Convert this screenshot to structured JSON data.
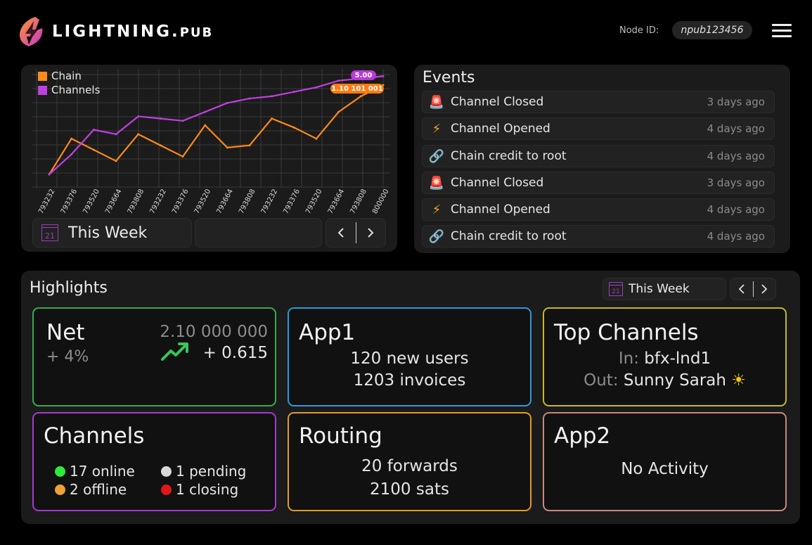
{
  "header": {
    "logo_main": "LIGHTNING.",
    "logo_suffix": "PUB",
    "node_id_label": "Node ID:",
    "node_id_value": "npub123456",
    "menu_icon": "hamburger-menu-icon"
  },
  "chart_panel": {
    "period_label": "This Week",
    "calendar_day": "21"
  },
  "chart_data": {
    "type": "line",
    "categories": [
      "793232",
      "793376",
      "793520",
      "793664",
      "793808",
      "793232",
      "793376",
      "793520",
      "793664",
      "793808",
      "793232",
      "793376",
      "793520",
      "793664",
      "793808",
      "800000"
    ],
    "series": [
      {
        "name": "Chain",
        "color": "#ff8a1c",
        "values": [
          0.6,
          2.2,
          1.7,
          1.2,
          2.4,
          1.9,
          1.4,
          2.8,
          1.8,
          1.9,
          3.1,
          2.7,
          2.2,
          3.4,
          4.1,
          4.6
        ]
      },
      {
        "name": "Channels",
        "color": "#c040e0",
        "values": [
          0.6,
          1.5,
          2.6,
          2.4,
          3.2,
          3.1,
          3.0,
          3.4,
          3.8,
          4.0,
          4.1,
          4.3,
          4.5,
          4.8,
          4.9,
          5.0
        ]
      }
    ],
    "flags": [
      {
        "series": "Channels",
        "label": "5.00"
      },
      {
        "series": "Chain",
        "label": "1.10 101 001"
      }
    ],
    "ylim": [
      0,
      5.2
    ],
    "grid": true,
    "legend_position": "top-left"
  },
  "events": {
    "title": "Events",
    "items": [
      {
        "icon": "alarm-siren-icon",
        "label": "Channel Closed",
        "time": "3 days ago"
      },
      {
        "icon": "lightning-bolt-icon",
        "label": "Channel Opened",
        "time": "4 days ago"
      },
      {
        "icon": "chain-link-icon",
        "label": "Chain credit to root",
        "time": "4 days ago"
      },
      {
        "icon": "alarm-siren-icon",
        "label": "Channel Closed",
        "time": "3 days ago"
      },
      {
        "icon": "lightning-bolt-icon",
        "label": "Channel Opened",
        "time": "4 days ago"
      },
      {
        "icon": "chain-link-icon",
        "label": "Chain credit to root",
        "time": "4 days ago"
      }
    ]
  },
  "highlights": {
    "title": "Highlights",
    "period_label": "This Week",
    "calendar_day": "21",
    "net": {
      "title": "Net",
      "change_pct": "+ 4%",
      "amount": "2.10 000 000",
      "delta": "+ 0.615",
      "border": "#3aaa4c"
    },
    "app1": {
      "title": "App1",
      "line1": "120 new users",
      "line2": "1203 invoices",
      "border": "#2d9ad8"
    },
    "top_channels": {
      "title": "Top Channels",
      "in_label": "In:",
      "in_value": "bfx-lnd1",
      "out_label": "Out:",
      "out_value": "Sunny Sarah",
      "border": "#c7b82a"
    },
    "channels": {
      "title": "Channels",
      "border": "#a53ad0",
      "statuses": [
        {
          "label": "17 online",
          "color": "#2ee83a"
        },
        {
          "label": "1 pending",
          "color": "#d8d8d8"
        },
        {
          "label": "2 offline",
          "color": "#f0a038"
        },
        {
          "label": "1 closing",
          "color": "#e01818"
        }
      ]
    },
    "routing": {
      "title": "Routing",
      "line1": "20 forwards",
      "line2": "2100 sats",
      "border": "#e39a2c"
    },
    "app2": {
      "title": "App2",
      "line1": "No Activity",
      "border": "#c98880"
    }
  }
}
